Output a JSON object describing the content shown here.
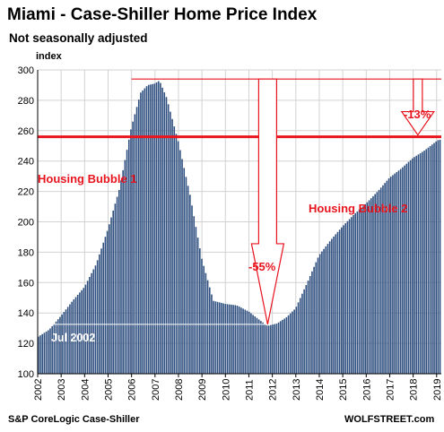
{
  "chart_data": {
    "type": "bar",
    "title": "Miami - Case-Shiller Home Price Index",
    "subtitle": "Not seasonally adjusted",
    "ylabel": "index",
    "ylim": [
      100,
      300
    ],
    "yticks": [
      100,
      120,
      140,
      160,
      180,
      200,
      220,
      240,
      260,
      280,
      300
    ],
    "xlim": [
      2002,
      2019.2
    ],
    "xticks": [
      2002,
      2003,
      2004,
      2005,
      2006,
      2007,
      2008,
      2009,
      2010,
      2011,
      2012,
      2013,
      2014,
      2015,
      2016,
      2017,
      2018,
      2019
    ],
    "grid": true,
    "bar_color": "#2e4f7f",
    "anchors": [
      [
        2002.0,
        124
      ],
      [
        2002.5,
        129
      ],
      [
        2003.0,
        138
      ],
      [
        2003.5,
        148
      ],
      [
        2004.0,
        157
      ],
      [
        2004.5,
        172
      ],
      [
        2005.0,
        195
      ],
      [
        2005.5,
        222
      ],
      [
        2006.0,
        262
      ],
      [
        2006.4,
        285
      ],
      [
        2006.7,
        290
      ],
      [
        2007.0,
        291
      ],
      [
        2007.2,
        293
      ],
      [
        2007.5,
        282
      ],
      [
        2008.0,
        253
      ],
      [
        2008.5,
        218
      ],
      [
        2009.0,
        176
      ],
      [
        2009.5,
        148
      ],
      [
        2010.0,
        146
      ],
      [
        2010.5,
        145
      ],
      [
        2011.0,
        141
      ],
      [
        2011.5,
        135
      ],
      [
        2011.8,
        131.5
      ],
      [
        2012.2,
        133
      ],
      [
        2012.6,
        137
      ],
      [
        2013.0,
        143
      ],
      [
        2013.5,
        160
      ],
      [
        2014.0,
        178
      ],
      [
        2014.5,
        188
      ],
      [
        2015.0,
        197
      ],
      [
        2015.5,
        205
      ],
      [
        2016.0,
        212
      ],
      [
        2016.5,
        220
      ],
      [
        2017.0,
        229
      ],
      [
        2017.5,
        235
      ],
      [
        2018.0,
        242
      ],
      [
        2018.5,
        247
      ],
      [
        2019.0,
        253
      ],
      [
        2019.1,
        254
      ]
    ],
    "reference_lines": [
      {
        "name": "peak-line",
        "y": 294,
        "color": "#e8141e"
      },
      {
        "name": "current-line",
        "y": 256,
        "color": "#e8141e"
      },
      {
        "name": "trough-line",
        "y": 132.5,
        "color": "#ffffff"
      }
    ],
    "annotations": {
      "bubble1": "Housing Bubble 1",
      "bubble2": "Housing Bubble 2",
      "drop55": "-55%",
      "drop13": "-13%",
      "jul2002": "Jul 2002"
    }
  },
  "footer": {
    "source": "S&P CoreLogic Case-Shiller",
    "brand": "WOLFSTREET.com"
  }
}
